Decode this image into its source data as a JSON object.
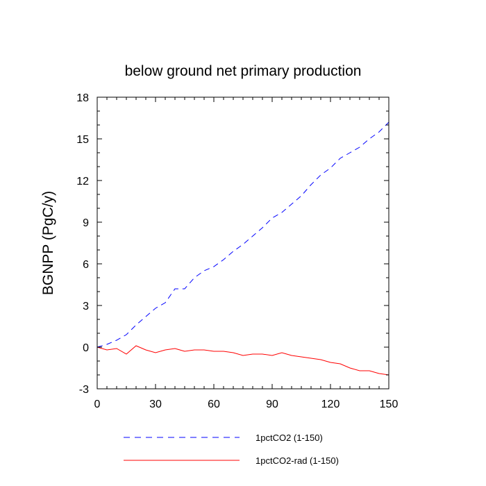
{
  "chart_data": {
    "type": "line",
    "title": "below ground net primary production",
    "xlabel": "",
    "ylabel": "BGNPP  (PgC/y)",
    "xlim": [
      0,
      150
    ],
    "ylim": [
      -3,
      18
    ],
    "xticks": [
      0,
      30,
      60,
      90,
      120,
      150
    ],
    "xtick_labels": [
      "0",
      "30",
      "60",
      "90",
      "120",
      "150"
    ],
    "yticks": [
      -3,
      0,
      3,
      6,
      9,
      12,
      15,
      18
    ],
    "ytick_labels": [
      "-3",
      "0",
      "3",
      "6",
      "9",
      "12",
      "15",
      "18"
    ],
    "grid": false,
    "legend_position": "bottom",
    "series": [
      {
        "name": "1pctCO2 (1-150)",
        "color": "#0000ff",
        "line_style": "dashed",
        "x": [
          0,
          5,
          10,
          15,
          20,
          25,
          30,
          35,
          40,
          45,
          50,
          55,
          60,
          65,
          70,
          75,
          80,
          85,
          90,
          95,
          100,
          105,
          110,
          115,
          120,
          125,
          130,
          135,
          140,
          145,
          150
        ],
        "y": [
          0.0,
          0.2,
          0.5,
          0.9,
          1.6,
          2.2,
          2.8,
          3.2,
          4.2,
          4.2,
          5.0,
          5.5,
          5.8,
          6.3,
          6.9,
          7.4,
          8.0,
          8.6,
          9.3,
          9.7,
          10.3,
          10.9,
          11.7,
          12.4,
          12.9,
          13.6,
          14.0,
          14.4,
          15.0,
          15.5,
          16.2
        ]
      },
      {
        "name": "1pctCO2-rad (1-150)",
        "color": "#ff0000",
        "line_style": "solid",
        "x": [
          0,
          5,
          10,
          15,
          20,
          25,
          30,
          35,
          40,
          45,
          50,
          55,
          60,
          65,
          70,
          75,
          80,
          85,
          90,
          95,
          100,
          105,
          110,
          115,
          120,
          125,
          130,
          135,
          140,
          145,
          150
        ],
        "y": [
          0.0,
          -0.2,
          -0.1,
          -0.5,
          0.1,
          -0.2,
          -0.4,
          -0.2,
          -0.1,
          -0.3,
          -0.2,
          -0.2,
          -0.3,
          -0.3,
          -0.4,
          -0.6,
          -0.5,
          -0.5,
          -0.6,
          -0.4,
          -0.6,
          -0.7,
          -0.8,
          -0.9,
          -1.1,
          -1.2,
          -1.5,
          -1.7,
          -1.7,
          -1.9,
          -2.0
        ]
      }
    ]
  }
}
